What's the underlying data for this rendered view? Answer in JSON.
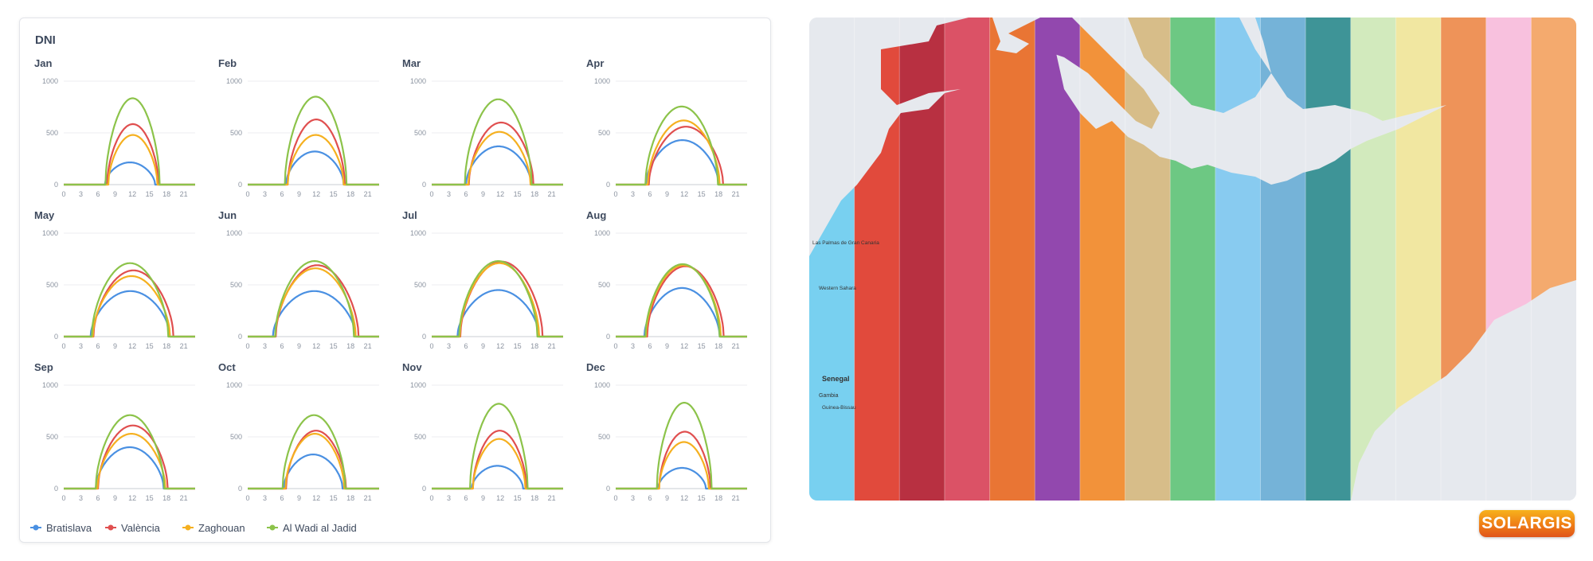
{
  "chart_data": {
    "type": "line",
    "title": "DNI",
    "x": [
      0,
      3,
      6,
      9,
      12,
      15,
      18,
      21
    ],
    "xtick_labels": [
      "0",
      "3",
      "6",
      "9",
      "12",
      "15",
      "18",
      "21"
    ],
    "ylim": [
      0,
      1000
    ],
    "ytick_labels": [
      "0",
      "500",
      "1000"
    ],
    "legend_position": "bottom-left",
    "legend": [
      {
        "name": "Bratislava",
        "color": "#4a90e2"
      },
      {
        "name": "València",
        "color": "#e04f4f"
      },
      {
        "name": "Zaghouan",
        "color": "#f5b020"
      },
      {
        "name": "Al Wadi al Jadid",
        "color": "#8cc34a"
      }
    ],
    "panels": [
      {
        "month": "Jan",
        "series": [
          [
            7.2,
            16.0,
            215
          ],
          [
            7.6,
            16.6,
            585
          ],
          [
            7.8,
            16.4,
            480
          ],
          [
            7.3,
            16.8,
            835
          ]
        ]
      },
      {
        "month": "Feb",
        "series": [
          [
            6.7,
            16.8,
            320
          ],
          [
            7.0,
            17.0,
            630
          ],
          [
            7.0,
            16.8,
            480
          ],
          [
            6.5,
            17.3,
            850
          ]
        ]
      },
      {
        "month": "Mar",
        "series": [
          [
            6.0,
            17.4,
            370
          ],
          [
            6.5,
            17.8,
            600
          ],
          [
            6.4,
            17.3,
            510
          ],
          [
            5.8,
            17.5,
            825
          ]
        ]
      },
      {
        "month": "Apr",
        "series": [
          [
            5.3,
            18.0,
            430
          ],
          [
            5.8,
            18.8,
            560
          ],
          [
            5.6,
            18.2,
            620
          ],
          [
            5.2,
            17.9,
            755
          ]
        ]
      },
      {
        "month": "May",
        "series": [
          [
            4.7,
            18.6,
            440
          ],
          [
            5.2,
            19.2,
            640
          ],
          [
            5.1,
            18.6,
            585
          ],
          [
            4.9,
            18.3,
            710
          ]
        ]
      },
      {
        "month": "Jun",
        "series": [
          [
            4.4,
            18.9,
            440
          ],
          [
            4.9,
            19.4,
            690
          ],
          [
            4.8,
            18.9,
            660
          ],
          [
            4.8,
            18.6,
            730
          ]
        ]
      },
      {
        "month": "Jul",
        "series": [
          [
            4.5,
            18.8,
            450
          ],
          [
            5.0,
            19.4,
            725
          ],
          [
            4.9,
            18.8,
            710
          ],
          [
            4.8,
            18.5,
            730
          ]
        ]
      },
      {
        "month": "Aug",
        "series": [
          [
            5.0,
            18.2,
            470
          ],
          [
            5.5,
            18.9,
            680
          ],
          [
            5.3,
            18.4,
            690
          ],
          [
            5.2,
            18.2,
            700
          ]
        ]
      },
      {
        "month": "Sep",
        "series": [
          [
            5.6,
            17.5,
            400
          ],
          [
            6.0,
            18.2,
            610
          ],
          [
            5.9,
            17.8,
            530
          ],
          [
            5.6,
            17.6,
            710
          ]
        ]
      },
      {
        "month": "Oct",
        "series": [
          [
            6.3,
            16.6,
            330
          ],
          [
            6.7,
            17.2,
            560
          ],
          [
            6.6,
            16.9,
            530
          ],
          [
            6.1,
            17.1,
            710
          ]
        ]
      },
      {
        "month": "Nov",
        "series": [
          [
            7.0,
            16.0,
            220
          ],
          [
            7.2,
            16.6,
            560
          ],
          [
            7.2,
            16.4,
            480
          ],
          [
            6.7,
            16.8,
            820
          ]
        ]
      },
      {
        "month": "Dec",
        "series": [
          [
            7.4,
            15.8,
            200
          ],
          [
            7.6,
            16.6,
            550
          ],
          [
            7.6,
            16.3,
            450
          ],
          [
            7.2,
            16.8,
            830
          ]
        ]
      }
    ]
  },
  "map": {
    "ocean_color": "#e6e9ee",
    "land_color": "#f1f0ea",
    "place_labels": [
      "Senegal",
      "Gambia",
      "Guinea-Bissau",
      "Western Sahara",
      "Las Palmas de Gran Canaria"
    ],
    "strip_colors": [
      "#6ecdf0",
      "#e03c2c",
      "#b31f32",
      "#d9445a",
      "#e86a24",
      "#8a3aa8",
      "#f28a2a",
      "#d5b880",
      "#62c47a",
      "#7fc8f0",
      "#6aaed6",
      "#2f8c8f",
      "#cfe9b8",
      "#f1e69a",
      "#ee8b4c",
      "#f9bddc",
      "#f4a463"
    ]
  },
  "logo": {
    "text": "SOLARGIS",
    "color_top": "#f7b21c",
    "color_bottom": "#e0541a"
  }
}
